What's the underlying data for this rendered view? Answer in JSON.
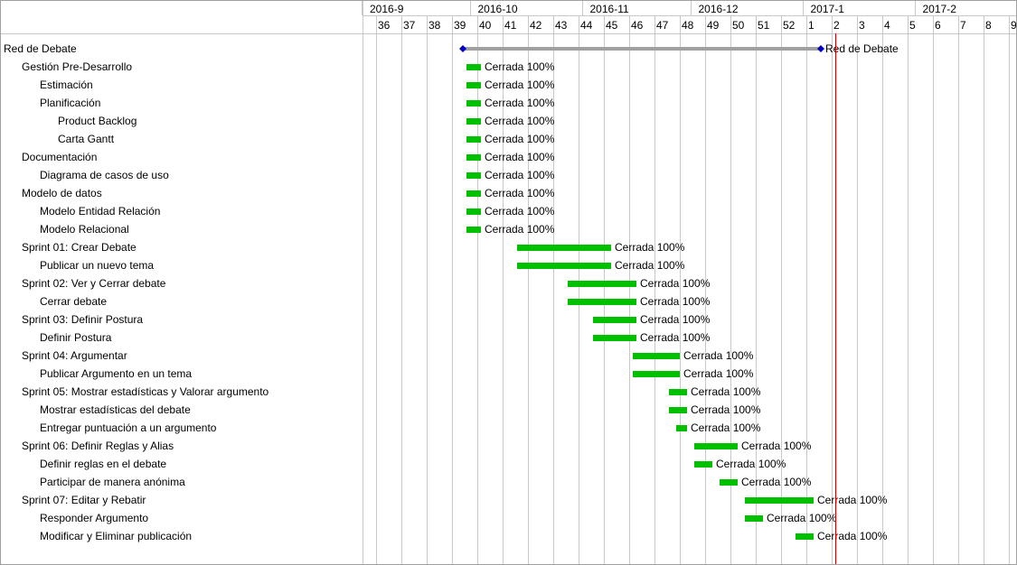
{
  "chart_data": {
    "type": "gantt",
    "title": "",
    "months": [
      "2016-9",
      "2016-10",
      "2016-11",
      "2016-12",
      "2017-1",
      "2017-2"
    ],
    "weeks": [
      "36",
      "37",
      "38",
      "39",
      "40",
      "41",
      "42",
      "43",
      "44",
      "45",
      "46",
      "47",
      "48",
      "49",
      "50",
      "51",
      "52",
      "1",
      "2",
      "3",
      "4",
      "5",
      "6",
      "7",
      "8",
      "9"
    ],
    "today": "2017-01-10",
    "bar_color": "#00c000",
    "summary_color": "#a0a0a0",
    "milestone_color": "#0000c0",
    "today_color": "#c00000",
    "grid": true,
    "tasks": [
      {
        "name": "Red de Debate",
        "level": 0,
        "type": "summary",
        "start": "2016-09-29",
        "end": "2017-01-05",
        "label": "Red de Debate"
      },
      {
        "name": "Gestión Pre-Desarrollo",
        "level": 1,
        "start": "2016-09-30",
        "end": "2016-10-03",
        "label": "Cerrada 100%"
      },
      {
        "name": "Estimación",
        "level": 2,
        "start": "2016-09-30",
        "end": "2016-10-03",
        "label": "Cerrada 100%"
      },
      {
        "name": "Planificación",
        "level": 2,
        "start": "2016-09-30",
        "end": "2016-10-03",
        "label": "Cerrada 100%"
      },
      {
        "name": "Product Backlog",
        "level": 3,
        "start": "2016-09-30",
        "end": "2016-10-03",
        "label": "Cerrada 100%"
      },
      {
        "name": "Carta Gantt",
        "level": 3,
        "start": "2016-09-30",
        "end": "2016-10-03",
        "label": "Cerrada 100%"
      },
      {
        "name": "Documentación",
        "level": 1,
        "start": "2016-09-30",
        "end": "2016-10-03",
        "label": "Cerrada 100%"
      },
      {
        "name": "Diagrama de casos de uso",
        "level": 2,
        "start": "2016-09-30",
        "end": "2016-10-03",
        "label": "Cerrada 100%"
      },
      {
        "name": "Modelo de datos",
        "level": 1,
        "start": "2016-09-30",
        "end": "2016-10-03",
        "label": "Cerrada 100%"
      },
      {
        "name": "Modelo Entidad Relación",
        "level": 2,
        "start": "2016-09-30",
        "end": "2016-10-03",
        "label": "Cerrada 100%"
      },
      {
        "name": "Modelo Relacional",
        "level": 2,
        "start": "2016-09-30",
        "end": "2016-10-03",
        "label": "Cerrada 100%"
      },
      {
        "name": "Sprint 01: Crear Debate",
        "level": 1,
        "start": "2016-10-14",
        "end": "2016-11-08",
        "label": "Cerrada 100%"
      },
      {
        "name": "Publicar un nuevo tema",
        "level": 2,
        "start": "2016-10-14",
        "end": "2016-11-08",
        "label": "Cerrada 100%"
      },
      {
        "name": "Sprint 02: Ver y Cerrar debate",
        "level": 1,
        "start": "2016-10-28",
        "end": "2016-11-15",
        "label": "Cerrada 100%"
      },
      {
        "name": "Cerrar debate",
        "level": 2,
        "start": "2016-10-28",
        "end": "2016-11-15",
        "label": "Cerrada 100%"
      },
      {
        "name": "Sprint 03: Definir Postura",
        "level": 1,
        "start": "2016-11-04",
        "end": "2016-11-15",
        "label": "Cerrada 100%"
      },
      {
        "name": "Definir Postura",
        "level": 2,
        "start": "2016-11-04",
        "end": "2016-11-15",
        "label": "Cerrada 100%"
      },
      {
        "name": "Sprint 04: Argumentar",
        "level": 1,
        "start": "2016-11-15",
        "end": "2016-11-27",
        "label": "Cerrada 100%"
      },
      {
        "name": "Publicar Argumento en un tema",
        "level": 2,
        "start": "2016-11-15",
        "end": "2016-11-27",
        "label": "Cerrada 100%"
      },
      {
        "name": "Sprint 05: Mostrar estadísticas y Valorar argumento",
        "level": 1,
        "start": "2016-11-25",
        "end": "2016-11-29",
        "label": "Cerrada 100%"
      },
      {
        "name": "Mostrar estadísticas del debate",
        "level": 2,
        "start": "2016-11-25",
        "end": "2016-11-29",
        "label": "Cerrada 100%"
      },
      {
        "name": "Entregar puntuación a un argumento",
        "level": 2,
        "start": "2016-11-27",
        "end": "2016-11-29",
        "label": "Cerrada 100%"
      },
      {
        "name": "Sprint 06: Definir Reglas y Alias",
        "level": 1,
        "start": "2016-12-02",
        "end": "2016-12-13",
        "label": "Cerrada 100%"
      },
      {
        "name": "Definir reglas en el debate",
        "level": 2,
        "start": "2016-12-02",
        "end": "2016-12-06",
        "label": "Cerrada 100%"
      },
      {
        "name": "Participar de manera anónima",
        "level": 2,
        "start": "2016-12-09",
        "end": "2016-12-13",
        "label": "Cerrada 100%"
      },
      {
        "name": "Sprint 07: Editar y Rebatir",
        "level": 1,
        "start": "2016-12-16",
        "end": "2017-01-03",
        "label": "Cerrada 100%"
      },
      {
        "name": "Responder Argumento",
        "level": 2,
        "start": "2016-12-16",
        "end": "2016-12-20",
        "label": "Cerrada 100%"
      },
      {
        "name": "Modificar y Eliminar publicación",
        "level": 2,
        "start": "2016-12-30",
        "end": "2017-01-03",
        "label": "Cerrada 100%"
      }
    ]
  }
}
